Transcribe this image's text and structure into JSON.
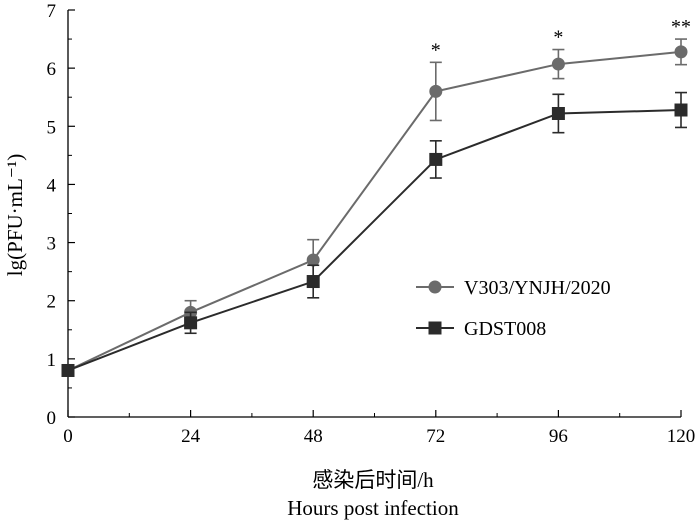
{
  "chart_data": {
    "type": "line",
    "title": "",
    "xlabel": "感染后时间/h",
    "xlabel_secondary": "Hours post infection",
    "ylabel": "lg(PFU·mL⁻¹)",
    "x": [
      0,
      24,
      48,
      72,
      96,
      120
    ],
    "x_tick_labels": [
      "0",
      "24",
      "48",
      "72",
      "96",
      "120"
    ],
    "xlim": [
      0,
      120
    ],
    "ylim": [
      0,
      7
    ],
    "y_ticks": [
      0,
      1,
      2,
      3,
      4,
      5,
      6,
      7
    ],
    "y_tick_labels": [
      "0",
      "1",
      "2",
      "3",
      "4",
      "5",
      "6",
      "7"
    ],
    "grid": false,
    "legend_position": "center-right",
    "series": [
      {
        "name": "V303/YNJH/2020",
        "marker": "circle",
        "color": "#6b6b6b",
        "values": [
          0.8,
          1.8,
          2.7,
          5.6,
          6.07,
          6.28
        ],
        "errors": [
          0.0,
          0.2,
          0.35,
          0.5,
          0.25,
          0.22
        ]
      },
      {
        "name": "GDST008",
        "marker": "square",
        "color": "#2b2b2b",
        "values": [
          0.8,
          1.62,
          2.33,
          4.43,
          5.22,
          5.28
        ],
        "errors": [
          0.0,
          0.18,
          0.28,
          0.32,
          0.33,
          0.3
        ]
      }
    ],
    "annotations": [
      {
        "x": 72,
        "text": "*"
      },
      {
        "x": 96,
        "text": "*"
      },
      {
        "x": 120,
        "text": "**"
      }
    ]
  }
}
